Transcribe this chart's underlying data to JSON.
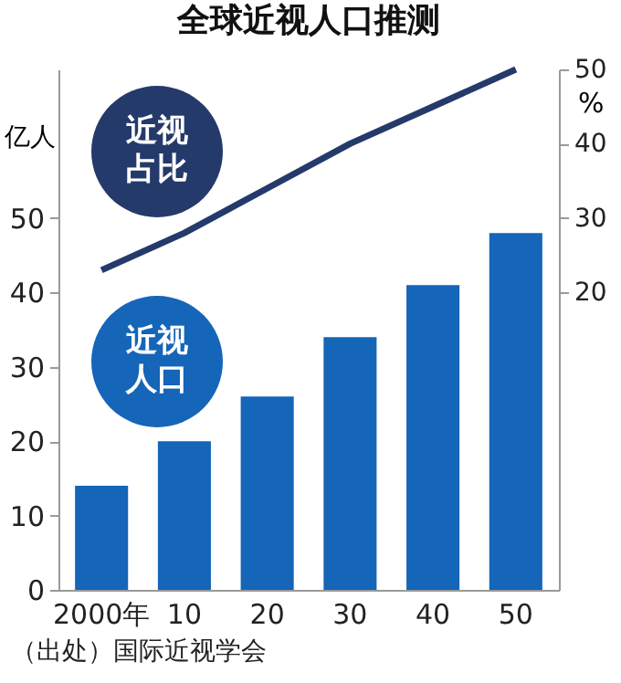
{
  "chart_data": {
    "type": "bar",
    "title": "全球近视人口推测",
    "ylabel": "亿人",
    "y2label": "%",
    "categories": [
      "2000年",
      "10",
      "20",
      "30",
      "40",
      "50"
    ],
    "series": [
      {
        "name": "近视人口",
        "color": "#1565b8",
        "values": [
          14,
          20,
          26,
          34,
          41,
          48
        ]
      },
      {
        "name": "近视占比",
        "type": "line",
        "axis": "y2",
        "color": "#243a6b",
        "values": [
          23,
          28,
          34,
          40,
          45,
          50
        ]
      }
    ],
    "ylim": [
      0,
      70
    ],
    "yticks": [
      0,
      10,
      20,
      30,
      40,
      50
    ],
    "y2lim": [
      -20,
      50
    ],
    "y2ticks": [
      20,
      30,
      40,
      50
    ],
    "grid": false,
    "marker": "none",
    "line_style": "solid",
    "annotations": [
      "（出处）国际近视学会"
    ]
  }
}
